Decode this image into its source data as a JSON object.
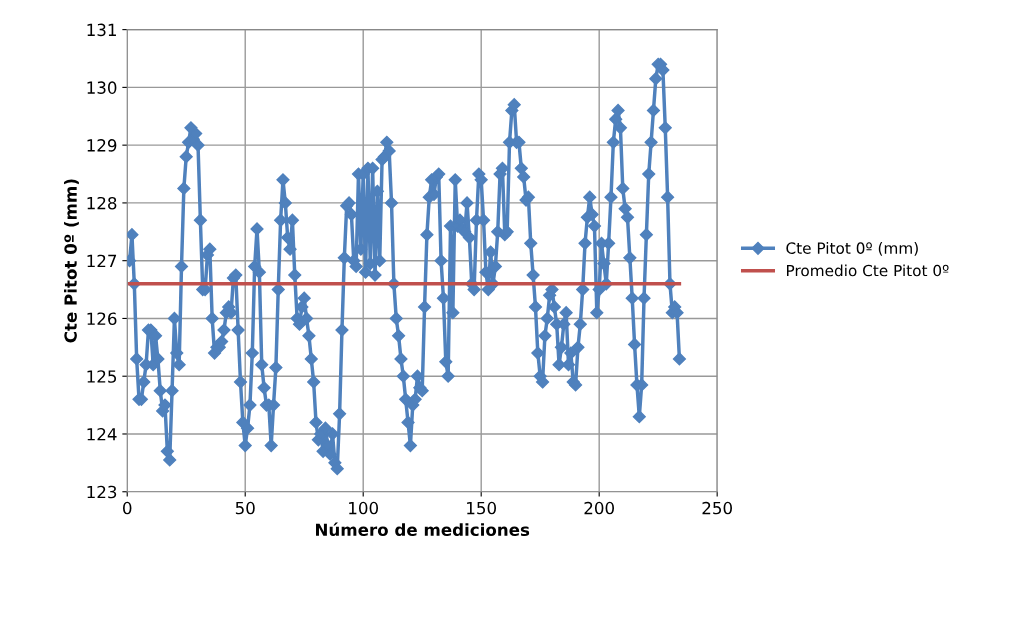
{
  "chart_data": {
    "type": "line",
    "xlabel": "Número de mediciones",
    "ylabel": "Cte Pitot 0º (mm)",
    "xlim": [
      0,
      250
    ],
    "xticks": [
      0,
      50,
      100,
      150,
      200,
      250
    ],
    "ylim": [
      123,
      131
    ],
    "yticks": [
      123,
      124,
      125,
      126,
      127,
      128,
      129,
      130,
      131
    ],
    "grid": true,
    "legend": "right",
    "line_style": "solid",
    "series": [
      {
        "name": "Cte Pitot 0º (mm)",
        "color": "#4f81bd",
        "marker": "diamond",
        "x": [
          1,
          2,
          3,
          4,
          5,
          6,
          7,
          8,
          9,
          10,
          11,
          12,
          13,
          14,
          15,
          16,
          17,
          18,
          19,
          20,
          21,
          22,
          23,
          24,
          25,
          26,
          27,
          28,
          29,
          30,
          31,
          32,
          33,
          34,
          35,
          36,
          37,
          38,
          39,
          40,
          41,
          42,
          43,
          44,
          45,
          46,
          47,
          48,
          49,
          50,
          51,
          52,
          53,
          54,
          55,
          56,
          57,
          58,
          59,
          60,
          61,
          62,
          63,
          64,
          65,
          66,
          67,
          68,
          69,
          70,
          71,
          72,
          73,
          74,
          75,
          76,
          77,
          78,
          79,
          80,
          81,
          82,
          83,
          84,
          85,
          86,
          87,
          88,
          89,
          90,
          91,
          92,
          93,
          94,
          95,
          96,
          97,
          98,
          99,
          100,
          101,
          102,
          103,
          104,
          105,
          106,
          107,
          108,
          109,
          110,
          111,
          112,
          113,
          114,
          115,
          116,
          117,
          118,
          119,
          120,
          121,
          122,
          123,
          124,
          125,
          126,
          127,
          128,
          129,
          130,
          131,
          132,
          133,
          134,
          135,
          136,
          137,
          138,
          139,
          140,
          141,
          142,
          143,
          144,
          145,
          146,
          147,
          148,
          149,
          150,
          151,
          152,
          153,
          154,
          155,
          156,
          157,
          158,
          159,
          160,
          161,
          162,
          163,
          164,
          165,
          166,
          167,
          168,
          169,
          170,
          171,
          172,
          173,
          174,
          175,
          176,
          177,
          178,
          179,
          180,
          181,
          182,
          183,
          184,
          185,
          186,
          187,
          188,
          189,
          190,
          191,
          192,
          193,
          194,
          195,
          196,
          197,
          198,
          199,
          200,
          201,
          202,
          203,
          204,
          205,
          206,
          207,
          208,
          209,
          210,
          211,
          212,
          213,
          214,
          215,
          216,
          217,
          218,
          219,
          220,
          221,
          222,
          223,
          224,
          225,
          226,
          227,
          228,
          229,
          230,
          231,
          232,
          233,
          234
        ],
        "values": [
          127.0,
          127.45,
          126.6,
          125.3,
          124.6,
          124.6,
          124.9,
          125.2,
          125.8,
          125.8,
          125.2,
          125.7,
          125.3,
          124.75,
          124.4,
          124.5,
          123.7,
          123.55,
          124.75,
          126.0,
          125.4,
          125.2,
          126.9,
          128.25,
          128.8,
          129.05,
          129.3,
          129.1,
          129.2,
          129.0,
          127.7,
          126.5,
          126.5,
          127.1,
          127.2,
          126.0,
          125.4,
          125.5,
          125.5,
          125.6,
          125.8,
          126.1,
          126.2,
          126.1,
          126.7,
          126.75,
          125.8,
          124.9,
          124.2,
          123.8,
          124.1,
          124.5,
          125.4,
          126.9,
          127.55,
          126.8,
          125.2,
          124.8,
          124.5,
          124.5,
          123.8,
          124.5,
          125.15,
          126.5,
          127.7,
          128.4,
          128.0,
          127.4,
          127.2,
          127.7,
          126.75,
          126.0,
          125.9,
          126.2,
          126.35,
          126.0,
          125.7,
          125.3,
          124.9,
          124.2,
          123.9,
          124.0,
          123.7,
          124.1,
          123.8,
          123.65,
          124.0,
          123.5,
          123.4,
          124.35,
          125.8,
          127.05,
          127.95,
          128.0,
          127.8,
          127.0,
          126.9,
          128.5,
          127.2,
          128.5,
          126.8,
          128.6,
          126.95,
          128.6,
          126.75,
          128.2,
          127.0,
          128.75,
          128.8,
          129.05,
          128.9,
          128.0,
          126.6,
          126.0,
          125.7,
          125.3,
          125.0,
          124.6,
          124.2,
          123.8,
          124.5,
          124.6,
          125.0,
          124.8,
          124.75,
          126.2,
          127.45,
          128.1,
          128.4,
          128.15,
          128.45,
          128.5,
          127.0,
          126.35,
          125.25,
          125.0,
          127.6,
          126.1,
          128.4,
          127.6,
          127.7,
          127.55,
          127.5,
          128.0,
          127.4,
          126.6,
          126.5,
          127.7,
          128.5,
          128.4,
          127.7,
          126.8,
          126.5,
          127.15,
          126.6,
          126.9,
          127.5,
          128.5,
          128.6,
          127.45,
          127.5,
          129.05,
          129.6,
          129.7,
          129.05,
          129.05,
          128.6,
          128.45,
          128.05,
          128.1,
          127.3,
          126.75,
          126.2,
          125.4,
          125.0,
          124.9,
          125.7,
          126.0,
          126.4,
          126.5,
          126.2,
          125.9,
          125.2,
          125.5,
          125.9,
          126.1,
          125.2,
          125.4,
          124.9,
          124.85,
          125.5,
          125.9,
          126.5,
          127.3,
          127.75,
          128.1,
          127.8,
          127.6,
          126.1,
          126.5,
          127.3,
          126.95,
          126.6,
          127.3,
          128.1,
          129.05,
          129.45,
          129.6,
          129.3,
          128.25,
          127.9,
          127.75,
          127.05,
          126.35,
          125.55,
          124.85,
          124.3,
          124.85,
          126.35,
          127.45,
          128.5,
          129.05,
          129.6,
          130.15,
          130.4,
          130.4,
          130.3,
          129.3,
          128.1,
          126.6,
          126.1,
          126.2,
          126.1,
          125.3
        ]
      },
      {
        "name": "Promedio Cte Pitot 0º",
        "color": "#c0504d",
        "marker": "none",
        "x": [
          1,
          234
        ],
        "values": [
          126.6,
          126.6
        ]
      }
    ]
  }
}
